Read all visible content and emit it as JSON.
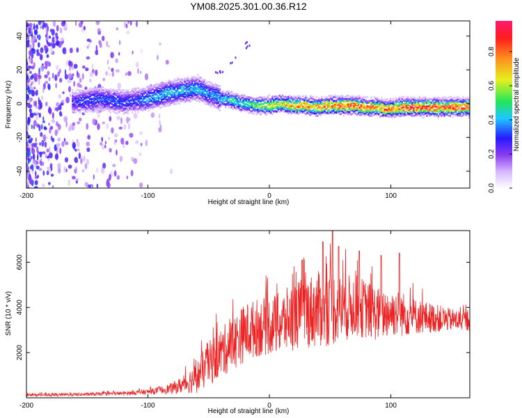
{
  "title": "YM08.2025.301.00.36.R12",
  "colors": {
    "axis": "#000000",
    "snr_line": "#ee2222",
    "background": "#ffffff",
    "colormap": [
      "#ffffff",
      "#9b4dff",
      "#2a1bff",
      "#1ec8ff",
      "#23e85a",
      "#f3f01b",
      "#ff8a1a",
      "#ff1e1e",
      "#ff1a74"
    ]
  },
  "chart_data": [
    {
      "type": "heatmap",
      "name": "spectrogram",
      "xlabel": "Height of straight line (km)",
      "ylabel": "Frequency (Hz)",
      "xlim": [
        -200,
        165
      ],
      "ylim": [
        -50,
        49
      ],
      "xticks": [
        -200,
        -100,
        0,
        100
      ],
      "xtick_labels": [
        "-200",
        "-100",
        "0",
        "100"
      ],
      "yticks": [
        -40,
        -20,
        0,
        20,
        40
      ],
      "ytick_labels": [
        "-40",
        "-20",
        "0",
        "20",
        "40"
      ],
      "ridge": {
        "heights_km": [
          -160,
          -150,
          -140,
          -130,
          -120,
          -110,
          -100,
          -90,
          -80,
          -70,
          -60,
          -55,
          -50,
          -45,
          -40,
          -30,
          -20,
          -10,
          0,
          10,
          20,
          30,
          40,
          50,
          60,
          70,
          80,
          90,
          95,
          100,
          110,
          120,
          130,
          140,
          150,
          165
        ],
        "freq_hz": [
          1,
          2,
          3,
          2,
          1,
          2,
          3,
          5,
          7,
          8,
          9,
          8,
          6,
          5,
          3,
          2,
          0,
          -1,
          -1,
          0,
          -1,
          -1,
          -2,
          -1,
          -1,
          -1,
          -2,
          -2,
          -3,
          -3,
          -2,
          -2,
          -2,
          -2,
          -2,
          -2
        ],
        "peak_amplitude": [
          0.3,
          0.35,
          0.35,
          0.35,
          0.35,
          0.35,
          0.4,
          0.45,
          0.45,
          0.45,
          0.45,
          0.45,
          0.4,
          0.4,
          0.45,
          0.5,
          0.55,
          0.6,
          0.75,
          0.7,
          0.8,
          0.85,
          0.8,
          0.85,
          0.9,
          0.9,
          0.85,
          0.8,
          0.85,
          0.85,
          0.9,
          0.95,
          0.95,
          0.95,
          0.95,
          0.9
        ]
      },
      "noise_region_km": [
        -200,
        -80
      ],
      "colorbar": {
        "label": "Normalized spectral amplitude",
        "range": [
          0,
          0.98
        ],
        "ticks": [
          0.0,
          0.2,
          0.4,
          0.6,
          0.8
        ],
        "tick_labels": [
          "0.0",
          "0.2",
          "0.4",
          "0.6",
          "0.8"
        ]
      }
    },
    {
      "type": "line",
      "name": "snr",
      "xlabel": "Height of straight line (km)",
      "ylabel": "SNR (10 * v/v)",
      "xlim": [
        -200,
        165
      ],
      "ylim": [
        0,
        7400
      ],
      "xticks": [
        -200,
        -100,
        0,
        100
      ],
      "xtick_labels": [
        "-200",
        "-100",
        "0",
        "100"
      ],
      "yticks": [
        2000,
        4000,
        6000
      ],
      "ytick_labels": [
        "2000",
        "4000",
        "6000"
      ],
      "envelope": {
        "x": [
          -200,
          -150,
          -120,
          -100,
          -90,
          -80,
          -70,
          -60,
          -50,
          -40,
          -30,
          -20,
          -10,
          0,
          10,
          20,
          30,
          40,
          50,
          60,
          70,
          80,
          90,
          100,
          110,
          120,
          130,
          140,
          150,
          165
        ],
        "mean": [
          120,
          150,
          200,
          260,
          330,
          420,
          600,
          900,
          1500,
          2000,
          2400,
          2900,
          3100,
          3200,
          3300,
          3600,
          3800,
          3900,
          4000,
          3900,
          4100,
          3900,
          3700,
          3800,
          3700,
          3600,
          3550,
          3500,
          3450,
          3400
        ],
        "spread": [
          60,
          70,
          80,
          120,
          150,
          250,
          400,
          700,
          1000,
          1100,
          1200,
          1300,
          1300,
          1300,
          1400,
          1500,
          1600,
          1700,
          1700,
          1500,
          1400,
          1300,
          1200,
          1100,
          1000,
          800,
          700,
          600,
          500,
          450
        ]
      },
      "peaks": [
        {
          "x": 44,
          "y": 6900
        },
        {
          "x": 52,
          "y": 7400
        },
        {
          "x": 57,
          "y": 6700
        },
        {
          "x": 74,
          "y": 6500
        },
        {
          "x": 92,
          "y": 6300
        },
        {
          "x": 107,
          "y": 6400
        },
        {
          "x": 27,
          "y": 6100
        }
      ]
    }
  ]
}
